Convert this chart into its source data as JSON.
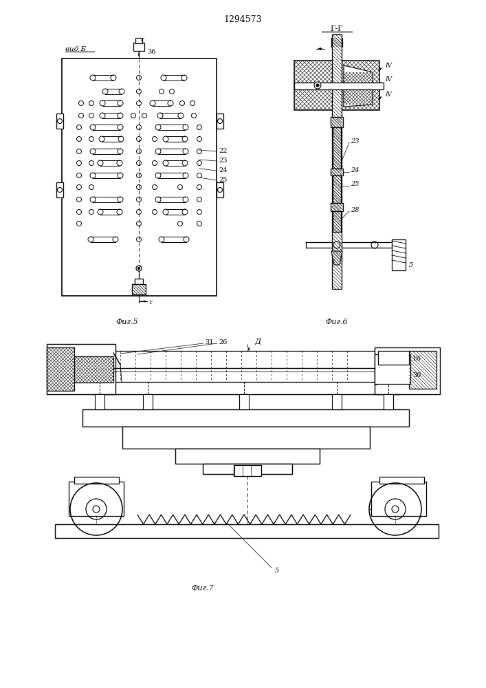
{
  "patent_number": "1294573",
  "fig5_label": "Фиг.5",
  "fig6_label": "Фиг.6",
  "fig7_label": "Фиг.7",
  "vid_label": "вид Б",
  "g_g_label": "Г-Г",
  "d_label": "Д",
  "bg_color": "#ffffff"
}
